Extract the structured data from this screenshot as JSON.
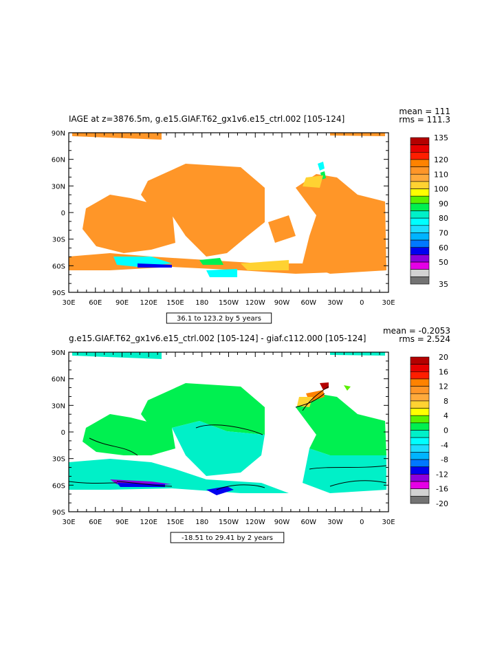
{
  "chart_data": [
    {
      "type": "heatmap",
      "title": "IAGE at z=3876.5m, g.e15.GIAF.T62_gx1v6.e15_ctrl.002 [105-124]",
      "stats": {
        "mean": "mean = 111",
        "rms": "rms = 111.3"
      },
      "x_ticks": [
        "30E",
        "60E",
        "90E",
        "120E",
        "150E",
        "180",
        "150W",
        "120W",
        "90W",
        "60W",
        "30W",
        "0",
        "30E"
      ],
      "y_ticks": [
        "90N",
        "60N",
        "30N",
        "0",
        "30S",
        "60S",
        "90S"
      ],
      "xlim": [
        30,
        390
      ],
      "ylim": [
        -90,
        90
      ],
      "colorbar_labels": [
        "135",
        "120",
        "110",
        "100",
        "90",
        "80",
        "70",
        "60",
        "50",
        "35"
      ],
      "colorbar_label_positions": [
        0,
        3,
        5,
        7,
        9,
        11,
        13,
        15,
        17,
        20
      ],
      "contour_info": "36.1 to 123.2 by 5 years"
    },
    {
      "type": "heatmap",
      "title": "g.e15.GIAF.T62_gx1v6.e15_ctrl.002 [105-124] - giaf.c112.000 [105-124]",
      "stats": {
        "mean": "mean = -0.2053",
        "rms": "rms = 2.524"
      },
      "x_ticks": [
        "30E",
        "60E",
        "90E",
        "120E",
        "150E",
        "180",
        "150W",
        "120W",
        "90W",
        "60W",
        "30W",
        "0",
        "30E"
      ],
      "y_ticks": [
        "90N",
        "60N",
        "30N",
        "0",
        "30S",
        "60S",
        "90S"
      ],
      "xlim": [
        30,
        390
      ],
      "ylim": [
        -90,
        90
      ],
      "colorbar_labels": [
        "20",
        "16",
        "12",
        "8",
        "4",
        "0",
        "-4",
        "-8",
        "-12",
        "-16",
        "-20"
      ],
      "colorbar_label_positions": [
        0,
        2,
        4,
        6,
        8,
        10,
        12,
        14,
        16,
        18,
        20
      ],
      "contour_info": "-18.51 to 29.41 by 2 years"
    }
  ],
  "colors": [
    "#b40000",
    "#e60000",
    "#ff1e00",
    "#ff8200",
    "#ff9628",
    "#ffaa3c",
    "#ffd232",
    "#ffff00",
    "#5af000",
    "#00f050",
    "#00f0c8",
    "#00ffff",
    "#1edcff",
    "#00b4ff",
    "#0078ff",
    "#0000f0",
    "#8c00dc",
    "#e600e6",
    "#d2d2d2",
    "#737373"
  ]
}
